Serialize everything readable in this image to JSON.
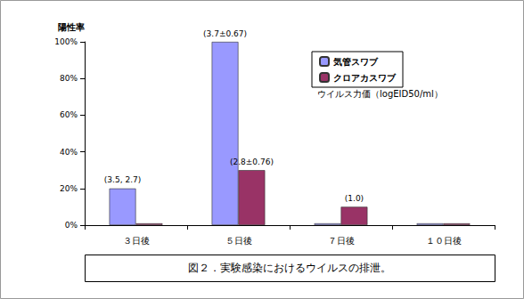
{
  "chart_data": {
    "type": "bar",
    "title": "図２．実験感染におけるウイルスの排泄。",
    "ylabel": "陽性率",
    "annotation": "ウイルス力価（logEID50/ml）",
    "categories": [
      "３日後",
      "５日後",
      "７日後",
      "１０日後"
    ],
    "series": [
      {
        "name": "気管スワブ",
        "color": "#9999ff",
        "values": [
          20,
          100,
          0,
          0
        ],
        "annotations": [
          "(3.5, 2.7)",
          "(3.7±0.67)",
          null,
          null
        ]
      },
      {
        "name": "クロアカスワブ",
        "color": "#993366",
        "values": [
          0,
          30,
          10,
          0
        ],
        "annotations": [
          null,
          "(2.8±0.76)",
          "(1.0)",
          null
        ]
      }
    ],
    "ylim": [
      0,
      100
    ],
    "yticks": [
      {
        "value": 0,
        "label": "0%"
      },
      {
        "value": 20,
        "label": "20%"
      },
      {
        "value": 40,
        "label": "40%"
      },
      {
        "value": 60,
        "label": "60%"
      },
      {
        "value": 80,
        "label": "80%"
      },
      {
        "value": 100,
        "label": "100%"
      }
    ],
    "grid": false,
    "legend": "top-right",
    "data_labels": false
  }
}
